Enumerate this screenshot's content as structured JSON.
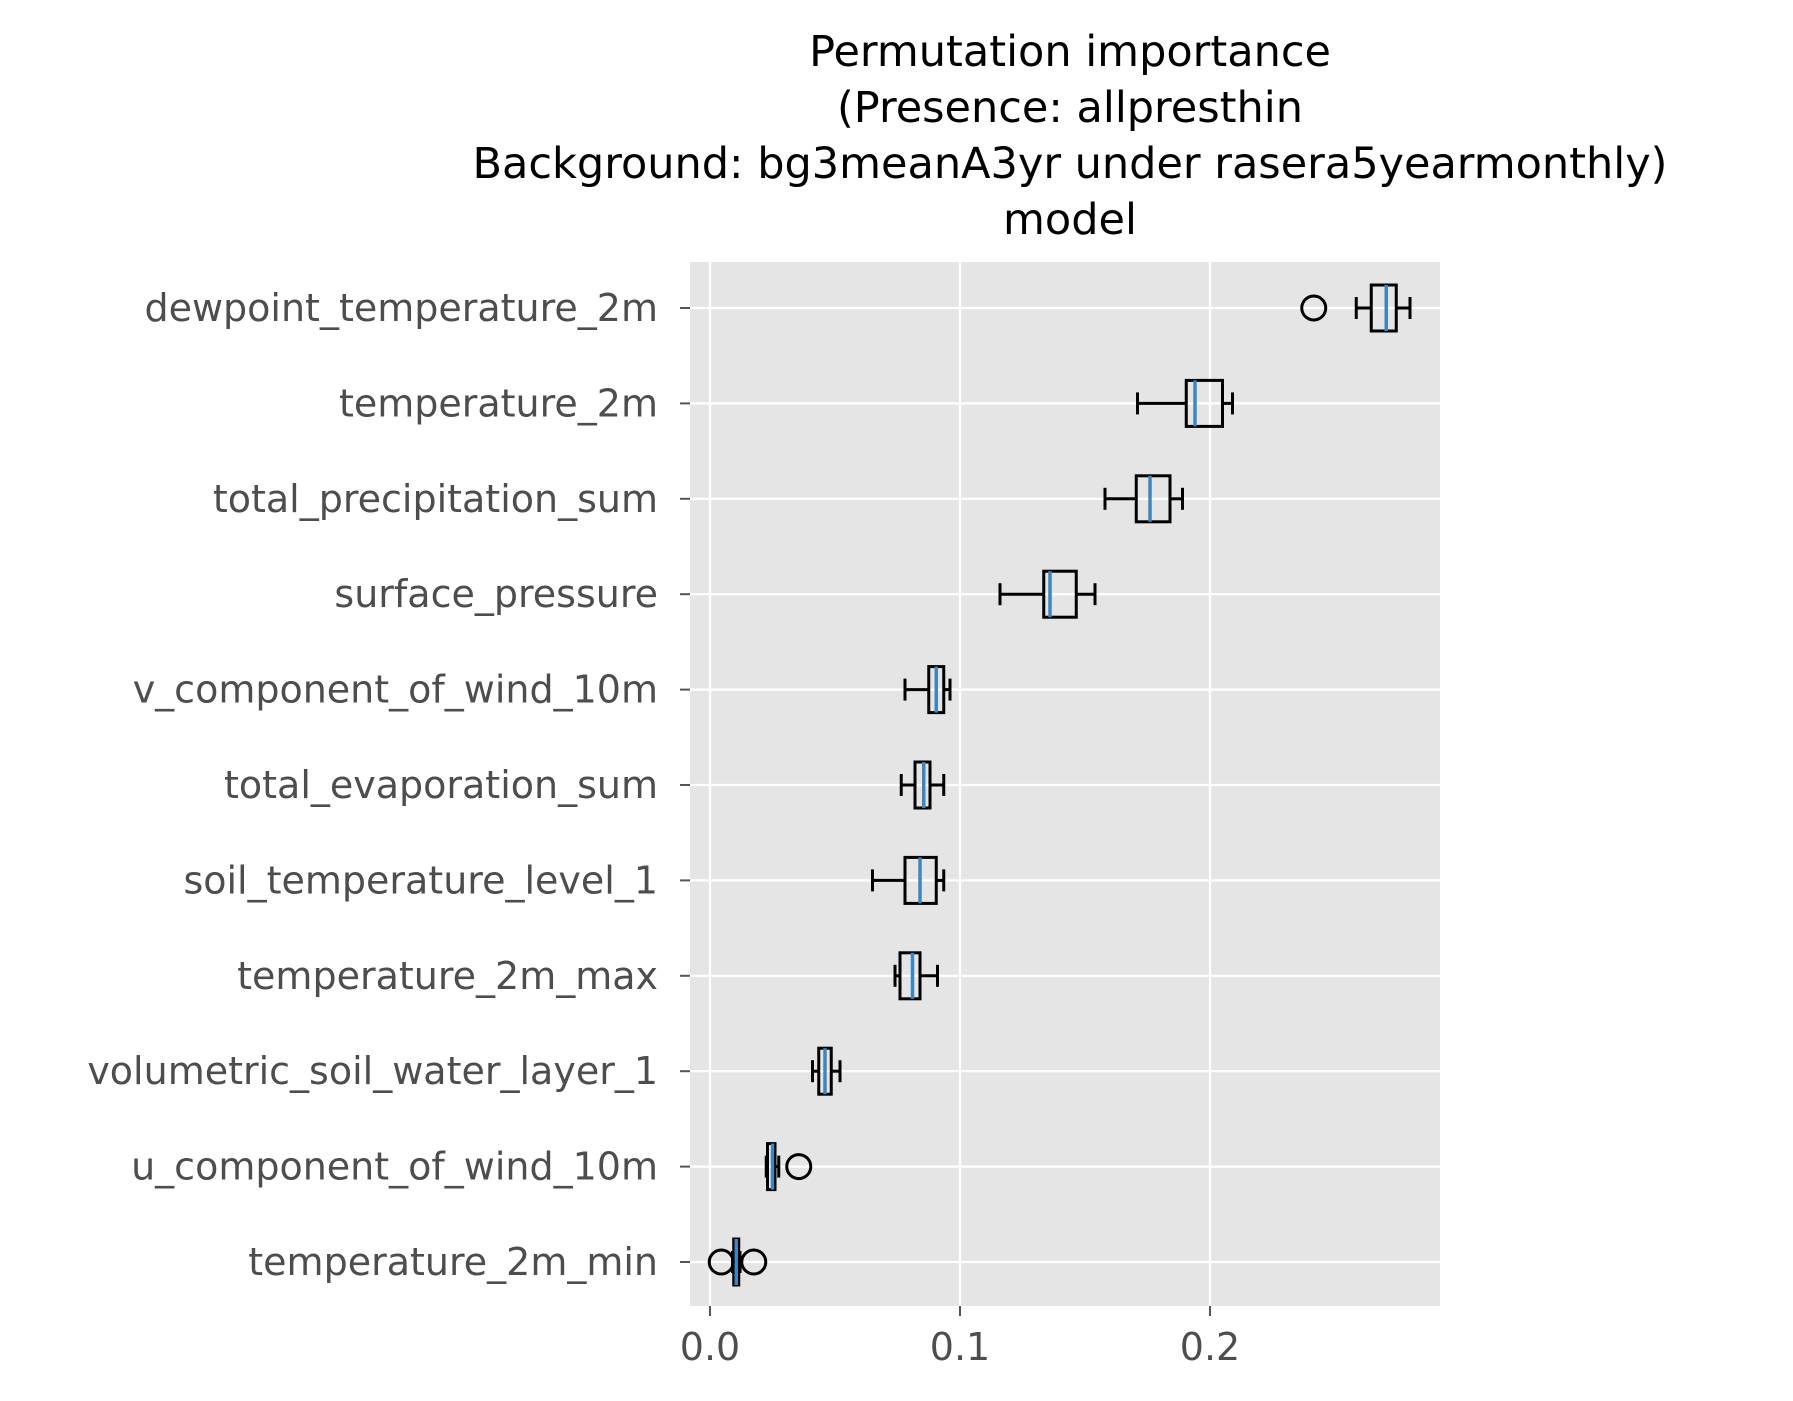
{
  "chart_data": {
    "type": "box",
    "title_lines": [
      "Permutation importance",
      "(Presence: allpresthin",
      "Background: bg3meanA3yr under rasera5yearmonthly)",
      "model"
    ],
    "xlabel": "",
    "ylabel": "",
    "xlim": [
      -0.008,
      0.292
    ],
    "xticks": [
      0.0,
      0.1,
      0.2
    ],
    "xtick_labels": [
      "0.0",
      "0.1",
      "0.2"
    ],
    "grid": true,
    "style": "ggplot",
    "colors": {
      "panel_bg": "#e5e5e5",
      "grid": "#ffffff",
      "box_edge": "#000000",
      "median": "#3e86bd",
      "tick_text": "#4d4d4d",
      "title_text": "#000000"
    },
    "categories": [
      "dewpoint_temperature_2m",
      "temperature_2m",
      "total_precipitation_sum",
      "surface_pressure",
      "v_component_of_wind_10m",
      "total_evaporation_sum",
      "soil_temperature_level_1",
      "temperature_2m_max",
      "volumetric_soil_water_layer_1",
      "u_component_of_wind_10m",
      "temperature_2m_min"
    ],
    "boxes": [
      {
        "label": "dewpoint_temperature_2m",
        "whisker_low": 0.2585,
        "q1": 0.2645,
        "median": 0.2705,
        "q3": 0.2745,
        "whisker_high": 0.28,
        "outliers": [
          0.2415
        ]
      },
      {
        "label": "temperature_2m",
        "whisker_low": 0.171,
        "q1": 0.1905,
        "median": 0.194,
        "q3": 0.205,
        "whisker_high": 0.209,
        "outliers": []
      },
      {
        "label": "total_precipitation_sum",
        "whisker_low": 0.158,
        "q1": 0.1705,
        "median": 0.176,
        "q3": 0.184,
        "whisker_high": 0.189,
        "outliers": []
      },
      {
        "label": "surface_pressure",
        "whisker_low": 0.116,
        "q1": 0.1335,
        "median": 0.136,
        "q3": 0.1465,
        "whisker_high": 0.154,
        "outliers": []
      },
      {
        "label": "v_component_of_wind_10m",
        "whisker_low": 0.078,
        "q1": 0.0875,
        "median": 0.0905,
        "q3": 0.0935,
        "whisker_high": 0.096,
        "outliers": []
      },
      {
        "label": "total_evaporation_sum",
        "whisker_low": 0.0765,
        "q1": 0.082,
        "median": 0.0855,
        "q3": 0.088,
        "whisker_high": 0.0935,
        "outliers": []
      },
      {
        "label": "soil_temperature_level_1",
        "whisker_low": 0.065,
        "q1": 0.078,
        "median": 0.084,
        "q3": 0.0905,
        "whisker_high": 0.0935,
        "outliers": []
      },
      {
        "label": "temperature_2m_max",
        "whisker_low": 0.074,
        "q1": 0.076,
        "median": 0.081,
        "q3": 0.084,
        "whisker_high": 0.091,
        "outliers": []
      },
      {
        "label": "volumetric_soil_water_layer_1",
        "whisker_low": 0.041,
        "q1": 0.0435,
        "median": 0.046,
        "q3": 0.0485,
        "whisker_high": 0.052,
        "outliers": []
      },
      {
        "label": "u_component_of_wind_10m",
        "whisker_low": 0.0225,
        "q1": 0.023,
        "median": 0.025,
        "q3": 0.026,
        "whisker_high": 0.0275,
        "outliers": [
          0.0355
        ]
      },
      {
        "label": "temperature_2m_min",
        "whisker_low": 0.009,
        "q1": 0.0095,
        "median": 0.0105,
        "q3": 0.0115,
        "whisker_high": 0.012,
        "outliers": [
          0.0045,
          0.0175
        ]
      }
    ]
  }
}
